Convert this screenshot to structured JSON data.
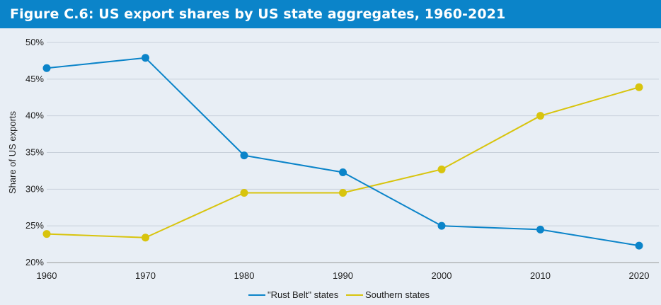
{
  "figure": {
    "title": "Figure C.6: US export shares by US state aggregates, 1960-2021"
  },
  "chart_data": {
    "type": "line",
    "title": "Figure C.6: US export shares by US state aggregates, 1960-2021",
    "xlabel": "",
    "ylabel": "Share of US exports",
    "x": [
      1960,
      1970,
      1980,
      1990,
      2000,
      2010,
      2020
    ],
    "xlim": [
      1960,
      2020
    ],
    "ylim": [
      20,
      50
    ],
    "yticks": [
      20,
      25,
      30,
      35,
      40,
      45,
      50
    ],
    "ytick_labels": [
      "20%",
      "25%",
      "30%",
      "35%",
      "40%",
      "45%",
      "50%"
    ],
    "xtick_labels": [
      "1960",
      "1970",
      "1980",
      "1990",
      "2000",
      "2010",
      "2020"
    ],
    "grid": "horizontal",
    "legend_position": "bottom-center",
    "series": [
      {
        "name": "\"Rust Belt\" states",
        "color": "#0b84c9",
        "values": [
          46.5,
          47.9,
          34.6,
          32.3,
          25.0,
          24.5,
          22.3
        ]
      },
      {
        "name": "Southern states",
        "color": "#d8c40d",
        "values": [
          23.9,
          23.4,
          29.5,
          29.5,
          32.7,
          40.0,
          43.9
        ]
      }
    ]
  }
}
